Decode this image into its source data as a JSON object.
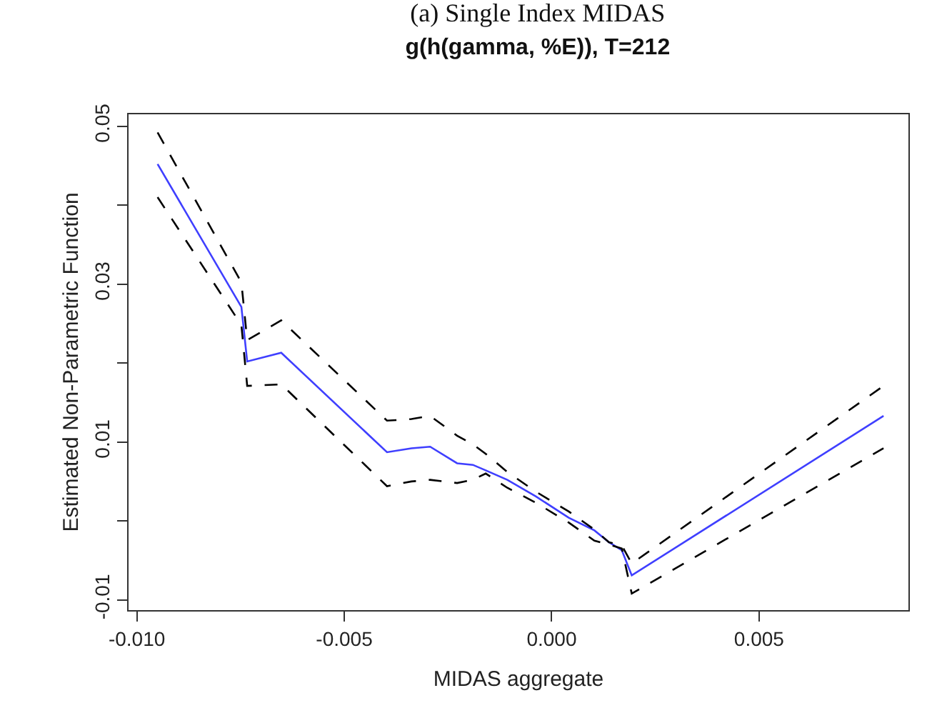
{
  "chart_data": {
    "type": "line",
    "title": "(a) Single Index MIDAS",
    "subtitle": "g(h(gamma, %E)), T=212",
    "xlabel": "MIDAS aggregate",
    "ylabel": "Estimated Non-Parametric Function",
    "xlim": [
      -0.0102,
      0.0086
    ],
    "ylim": [
      -0.0113,
      0.0515
    ],
    "xticks": [
      {
        "value": -0.01,
        "label": "-0.010"
      },
      {
        "value": -0.005,
        "label": "-0.005"
      },
      {
        "value": 0,
        "label": "0.000"
      },
      {
        "value": 0.005,
        "label": "0.005"
      }
    ],
    "yticks": [
      {
        "value": -0.01,
        "label": "-0.01"
      },
      {
        "value": 0,
        "label": null
      },
      {
        "value": 0.01,
        "label": "0.01"
      },
      {
        "value": 0.02,
        "label": null
      },
      {
        "value": 0.03,
        "label": "0.03"
      },
      {
        "value": 0.04,
        "label": null
      },
      {
        "value": 0.05,
        "label": "0.05"
      }
    ],
    "marker": "none",
    "series": [
      {
        "color": "#3f3fff",
        "line_style": "solid",
        "x": [
          -0.0095,
          -0.00748,
          -0.00734,
          -0.00652,
          -0.00397,
          -0.00338,
          -0.00293,
          -0.00228,
          -0.0019,
          -0.00159,
          -0.00107,
          -0.00038,
          0.00041,
          0.00103,
          0.00138,
          0.00169,
          0.00193,
          0.008
        ],
        "values": [
          0.0452,
          0.0271,
          0.0202,
          0.0213,
          0.0087,
          0.0092,
          0.0094,
          0.0073,
          0.0071,
          0.0064,
          0.0052,
          0.0031,
          0.0004,
          -0.0012,
          -0.0027,
          -0.0037,
          -0.0069,
          0.0133
        ]
      },
      {
        "color": "#000000",
        "line_style": "dashed",
        "x": [
          -0.0095,
          -0.00748,
          -0.00734,
          -0.00652,
          -0.00397,
          -0.00338,
          -0.00293,
          -0.00228,
          -0.0019,
          -0.00159,
          -0.00107,
          -0.00038,
          0.00041,
          0.00103,
          0.00138,
          0.00169,
          0.00193,
          0.008
        ],
        "values": [
          0.0492,
          0.0302,
          0.0229,
          0.0254,
          0.0127,
          0.0129,
          0.0133,
          0.0108,
          0.0097,
          0.0085,
          0.0062,
          0.0037,
          0.0012,
          -0.0011,
          -0.0027,
          -0.0031,
          -0.0054,
          0.0171
        ]
      },
      {
        "color": "#000000",
        "line_style": "dashed",
        "x": [
          -0.0095,
          -0.00748,
          -0.00734,
          -0.00652,
          -0.00397,
          -0.00338,
          -0.00293,
          -0.00228,
          -0.0019,
          -0.00159,
          -0.00107,
          -0.00038,
          0.00041,
          0.00103,
          0.00138,
          0.00169,
          0.00193,
          0.008
        ],
        "values": [
          0.041,
          0.0248,
          0.0171,
          0.0173,
          0.0044,
          0.005,
          0.0052,
          0.0048,
          0.0052,
          0.006,
          0.0042,
          0.0023,
          -0.0002,
          -0.0025,
          -0.003,
          -0.0035,
          -0.0092,
          0.0092
        ]
      }
    ]
  }
}
